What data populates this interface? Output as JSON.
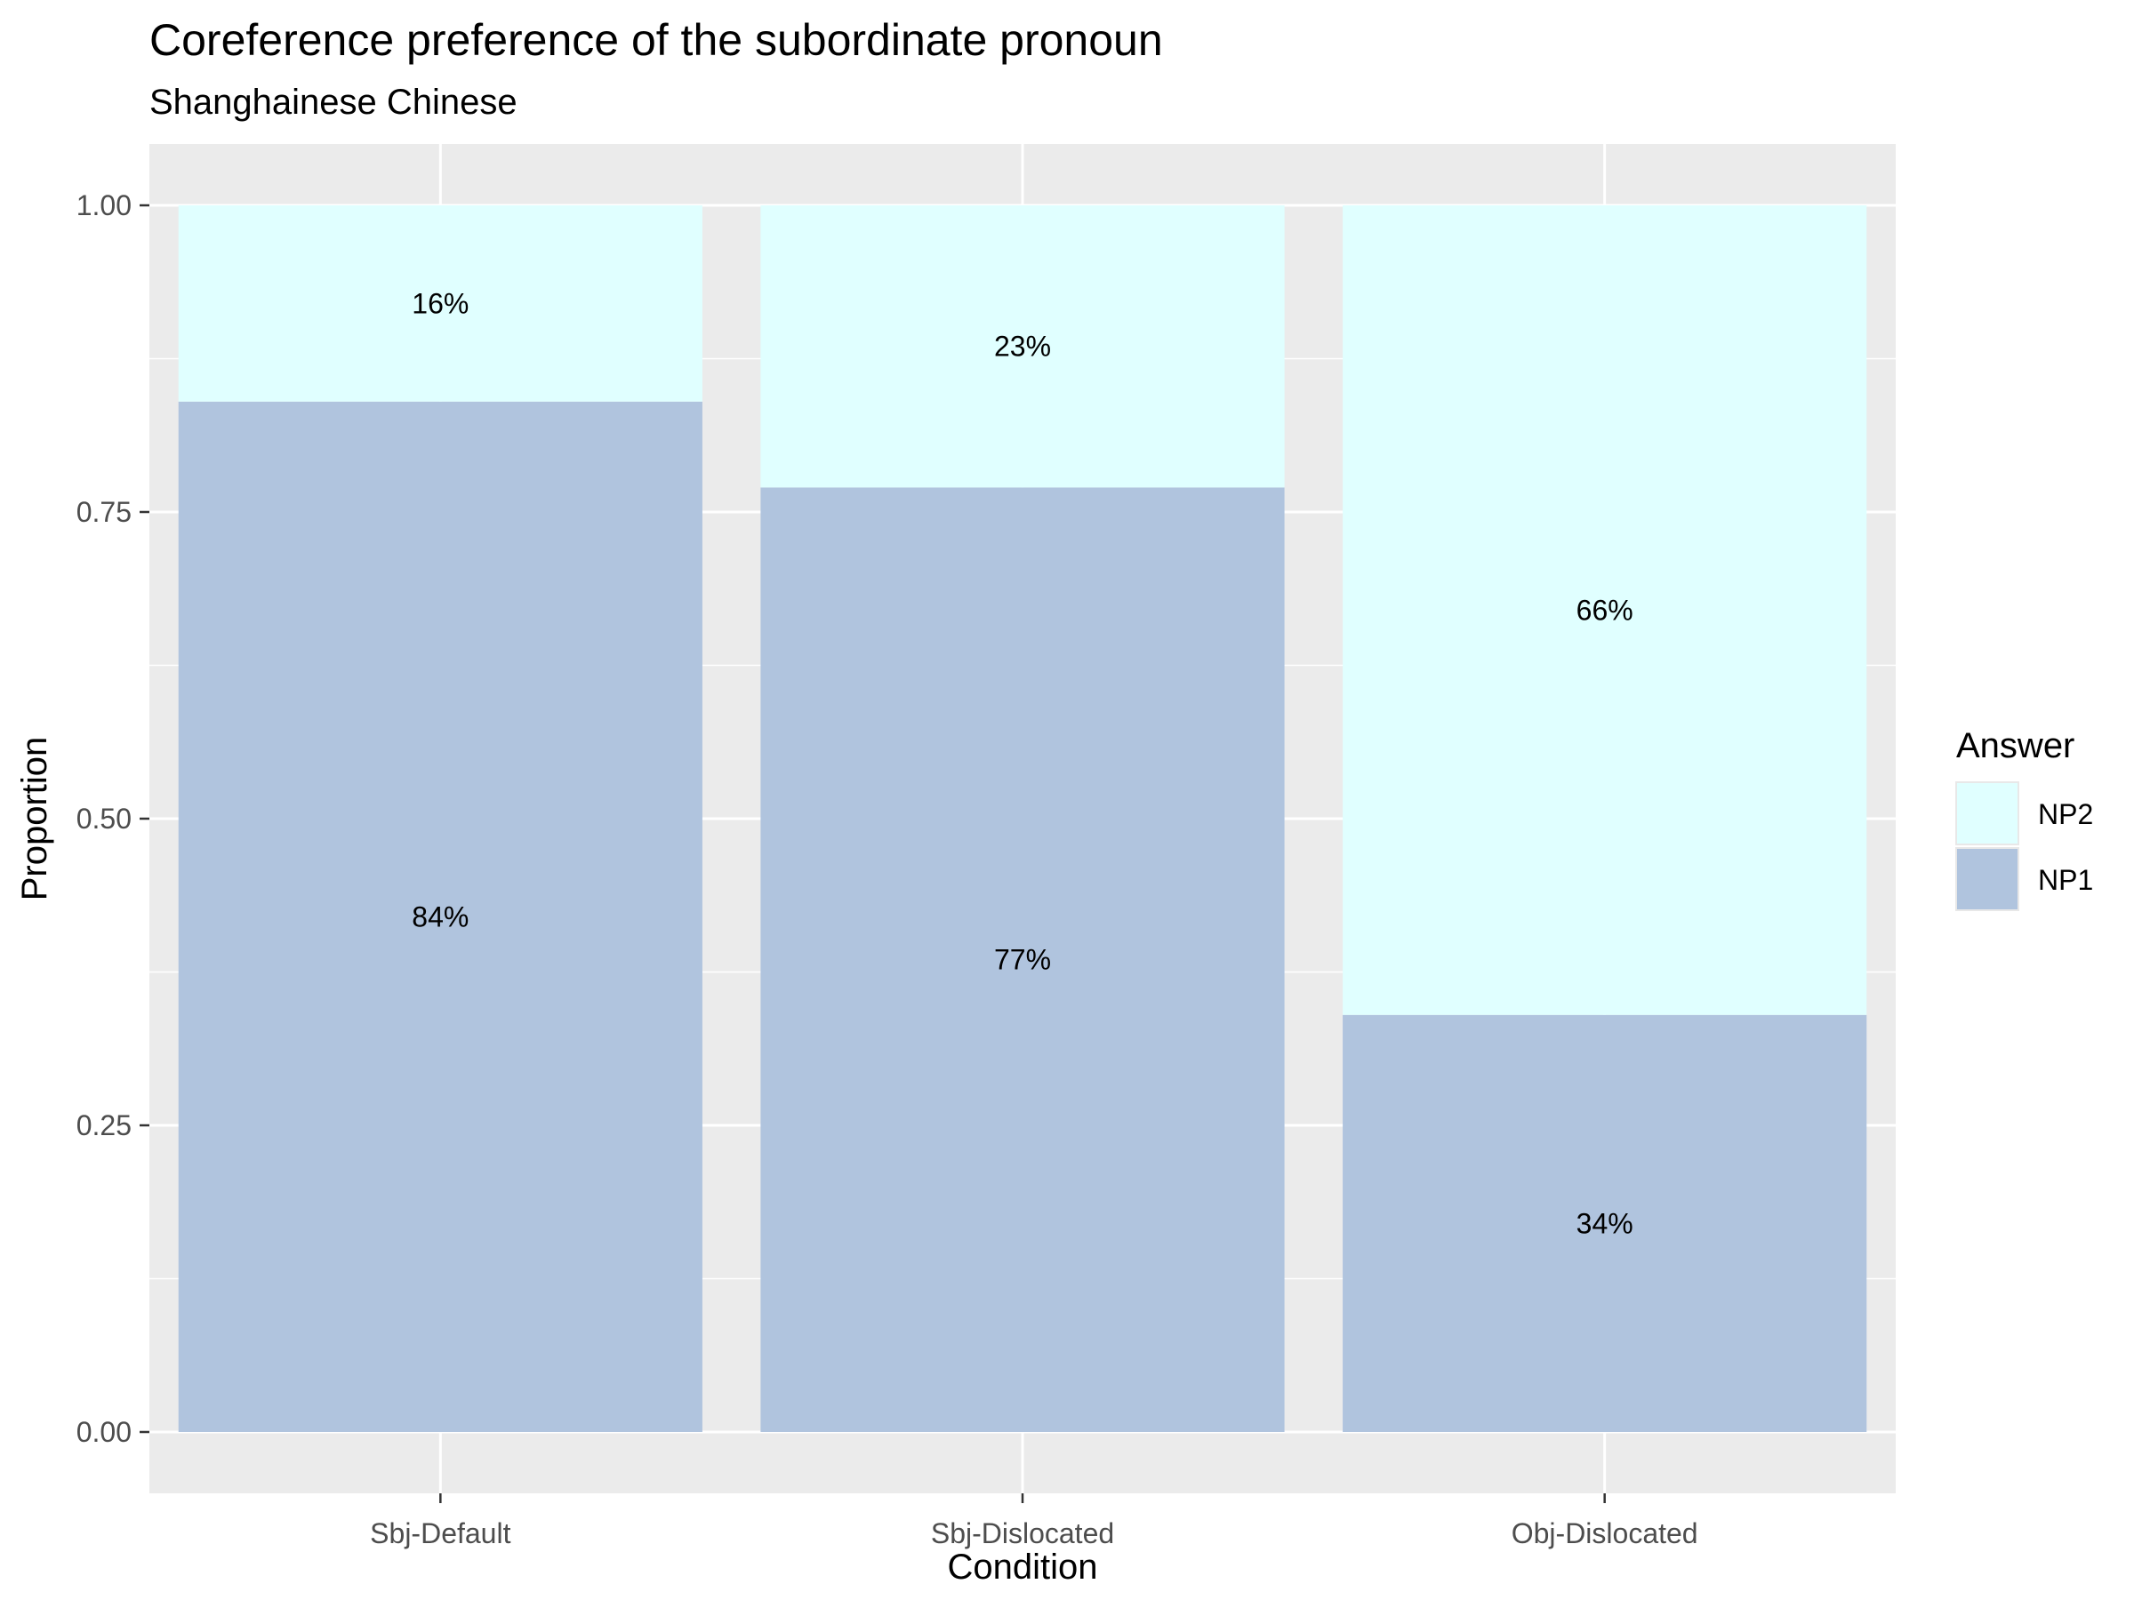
{
  "chart_data": {
    "type": "bar",
    "stacked": true,
    "title": "Coreference preference of the subordinate pronoun",
    "subtitle": "Shanghainese Chinese",
    "xlabel": "Condition",
    "ylabel": "Proportion",
    "ylim": [
      -0.05,
      1.05
    ],
    "yticks": [
      0.0,
      0.25,
      0.5,
      0.75,
      1.0
    ],
    "ytick_labels": [
      "0.00",
      "0.25",
      "0.50",
      "0.75",
      "1.00"
    ],
    "categories": [
      "Sbj-Default",
      "Sbj-Dislocated",
      "Obj-Dislocated"
    ],
    "grid": true,
    "legend": {
      "title": "Answer",
      "placement": "right",
      "order": [
        "NP2",
        "NP1"
      ]
    },
    "series": [
      {
        "name": "NP1",
        "values": [
          0.84,
          0.77,
          0.34
        ],
        "labels": [
          "84%",
          "77%",
          "34%"
        ],
        "color": "#b0c4de"
      },
      {
        "name": "NP2",
        "values": [
          0.16,
          0.23,
          0.66
        ],
        "labels": [
          "16%",
          "23%",
          "66%"
        ],
        "color": "#e0ffff"
      }
    ],
    "panel_background": "#ebebeb",
    "gridline_color": "#ffffff"
  }
}
